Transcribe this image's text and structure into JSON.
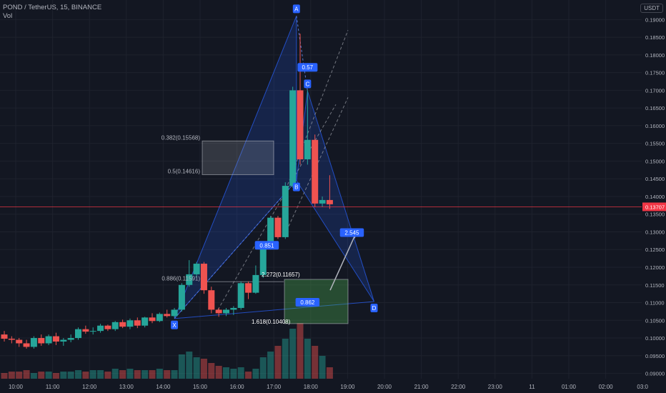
{
  "header": {
    "symbol_line": "POND / TetherUS, 15, BINANCE",
    "volume_label": "Vol",
    "currency": "USDT"
  },
  "colors": {
    "background": "#131722",
    "up": "#26a69a",
    "down": "#ef5350",
    "pattern_fill": "#2962ff",
    "price_line": "#f23645",
    "grid": "#1e222d"
  },
  "chart_data": {
    "type": "candlestick",
    "y_axis": {
      "ticks": [
        "0.19000",
        "0.18500",
        "0.18000",
        "0.17500",
        "0.17000",
        "0.16500",
        "0.16000",
        "0.15500",
        "0.15000",
        "0.14500",
        "0.14000",
        "0.13500",
        "0.13000",
        "0.12500",
        "0.12000",
        "0.11500",
        "0.11000",
        "0.10500",
        "0.10000",
        "0.09500",
        "0.09000"
      ],
      "range": [
        0.0885,
        0.1935
      ]
    },
    "x_axis": {
      "ticks": [
        "10:00",
        "11:00",
        "12:00",
        "13:00",
        "14:00",
        "15:00",
        "16:00",
        "17:00",
        "18:00",
        "19:00",
        "20:00",
        "21:00",
        "22:00",
        "23:00",
        "11",
        "01:00",
        "02:00",
        "03:0"
      ]
    },
    "last_price": "0.13707",
    "candles": [
      {
        "o": 0.101,
        "h": 0.102,
        "l": 0.099,
        "c": 0.0998,
        "v": 0.4
      },
      {
        "o": 0.0998,
        "h": 0.1005,
        "l": 0.0985,
        "c": 0.0995,
        "v": 0.5
      },
      {
        "o": 0.0995,
        "h": 0.1,
        "l": 0.0975,
        "c": 0.0985,
        "v": 0.5
      },
      {
        "o": 0.0985,
        "h": 0.0995,
        "l": 0.097,
        "c": 0.0975,
        "v": 0.6
      },
      {
        "o": 0.0975,
        "h": 0.1005,
        "l": 0.097,
        "c": 0.1,
        "v": 0.4
      },
      {
        "o": 0.1,
        "h": 0.101,
        "l": 0.0978,
        "c": 0.0985,
        "v": 0.5
      },
      {
        "o": 0.0985,
        "h": 0.101,
        "l": 0.098,
        "c": 0.1005,
        "v": 0.5
      },
      {
        "o": 0.1005,
        "h": 0.1015,
        "l": 0.098,
        "c": 0.099,
        "v": 0.4
      },
      {
        "o": 0.099,
        "h": 0.1,
        "l": 0.0978,
        "c": 0.0995,
        "v": 0.5
      },
      {
        "o": 0.0995,
        "h": 0.101,
        "l": 0.0988,
        "c": 0.1,
        "v": 0.5
      },
      {
        "o": 0.1,
        "h": 0.103,
        "l": 0.0995,
        "c": 0.1025,
        "v": 0.6
      },
      {
        "o": 0.1025,
        "h": 0.1035,
        "l": 0.1012,
        "c": 0.1018,
        "v": 0.5
      },
      {
        "o": 0.1018,
        "h": 0.103,
        "l": 0.101,
        "c": 0.102,
        "v": 0.6
      },
      {
        "o": 0.102,
        "h": 0.104,
        "l": 0.1015,
        "c": 0.1035,
        "v": 0.6
      },
      {
        "o": 0.1035,
        "h": 0.1038,
        "l": 0.102,
        "c": 0.1025,
        "v": 0.5
      },
      {
        "o": 0.1025,
        "h": 0.1048,
        "l": 0.102,
        "c": 0.1045,
        "v": 0.7
      },
      {
        "o": 0.1045,
        "h": 0.1052,
        "l": 0.1028,
        "c": 0.1032,
        "v": 0.6
      },
      {
        "o": 0.1032,
        "h": 0.1055,
        "l": 0.1025,
        "c": 0.105,
        "v": 0.7
      },
      {
        "o": 0.105,
        "h": 0.1058,
        "l": 0.1028,
        "c": 0.1035,
        "v": 0.6
      },
      {
        "o": 0.1035,
        "h": 0.106,
        "l": 0.103,
        "c": 0.1058,
        "v": 0.6
      },
      {
        "o": 0.1058,
        "h": 0.107,
        "l": 0.1042,
        "c": 0.1048,
        "v": 0.6
      },
      {
        "o": 0.1048,
        "h": 0.1072,
        "l": 0.1045,
        "c": 0.1068,
        "v": 0.7
      },
      {
        "o": 0.1068,
        "h": 0.108,
        "l": 0.1058,
        "c": 0.1062,
        "v": 0.6
      },
      {
        "o": 0.1062,
        "h": 0.1085,
        "l": 0.1058,
        "c": 0.108,
        "v": 0.6
      },
      {
        "o": 0.108,
        "h": 0.1155,
        "l": 0.1075,
        "c": 0.115,
        "v": 1.7
      },
      {
        "o": 0.115,
        "h": 0.122,
        "l": 0.1145,
        "c": 0.118,
        "v": 1.9
      },
      {
        "o": 0.118,
        "h": 0.1215,
        "l": 0.117,
        "c": 0.121,
        "v": 1.5
      },
      {
        "o": 0.121,
        "h": 0.1215,
        "l": 0.1125,
        "c": 0.1135,
        "v": 1.4
      },
      {
        "o": 0.1135,
        "h": 0.1145,
        "l": 0.107,
        "c": 0.108,
        "v": 1.1
      },
      {
        "o": 0.108,
        "h": 0.1085,
        "l": 0.106,
        "c": 0.107,
        "v": 0.9
      },
      {
        "o": 0.107,
        "h": 0.1085,
        "l": 0.1062,
        "c": 0.108,
        "v": 0.8
      },
      {
        "o": 0.108,
        "h": 0.109,
        "l": 0.1065,
        "c": 0.1085,
        "v": 0.7
      },
      {
        "o": 0.1085,
        "h": 0.116,
        "l": 0.108,
        "c": 0.1155,
        "v": 0.8
      },
      {
        "o": 0.1155,
        "h": 0.116,
        "l": 0.111,
        "c": 0.1128,
        "v": 0.5
      },
      {
        "o": 0.1128,
        "h": 0.1205,
        "l": 0.1125,
        "c": 0.1178,
        "v": 0.7
      },
      {
        "o": 0.1178,
        "h": 0.126,
        "l": 0.117,
        "c": 0.1255,
        "v": 1.5
      },
      {
        "o": 0.1255,
        "h": 0.1345,
        "l": 0.125,
        "c": 0.134,
        "v": 1.9
      },
      {
        "o": 0.134,
        "h": 0.1345,
        "l": 0.128,
        "c": 0.1285,
        "v": 2.3
      },
      {
        "o": 0.1285,
        "h": 0.144,
        "l": 0.128,
        "c": 0.143,
        "v": 2.8
      },
      {
        "o": 0.143,
        "h": 0.171,
        "l": 0.1425,
        "c": 0.17,
        "v": 3.5
      },
      {
        "o": 0.17,
        "h": 0.186,
        "l": 0.149,
        "c": 0.1505,
        "v": 3.9
      },
      {
        "o": 0.1505,
        "h": 0.17,
        "l": 0.149,
        "c": 0.156,
        "v": 2.8
      },
      {
        "o": 0.156,
        "h": 0.1575,
        "l": 0.137,
        "c": 0.138,
        "v": 2.3
      },
      {
        "o": 0.138,
        "h": 0.14,
        "l": 0.137,
        "c": 0.139,
        "v": 1.6
      },
      {
        "o": 0.139,
        "h": 0.146,
        "l": 0.1365,
        "c": 0.1378,
        "v": 0.8
      }
    ],
    "annotations": {
      "points": [
        {
          "label": "X",
          "price": 0.1055,
          "idx": 23
        },
        {
          "label": "A",
          "price": 0.191,
          "idx": 39.5
        },
        {
          "label": "B",
          "price": 0.1445,
          "idx": 39.5
        },
        {
          "label": "C",
          "price": 0.1698,
          "idx": 41
        },
        {
          "label": "D",
          "price": 0.1103,
          "idx": 50
        }
      ],
      "ratios": [
        {
          "text": "0.57",
          "price": 0.1765,
          "idx": 41
        },
        {
          "text": "2.545",
          "price": 0.1298,
          "idx": 47
        },
        {
          "text": "0.851",
          "price": 0.1262,
          "idx": 35.5
        },
        {
          "text": "0.862",
          "price": 0.1101,
          "idx": 41
        }
      ],
      "levels": [
        {
          "text": "0.382(0.15568)",
          "price": 0.15568
        },
        {
          "text": "0.5(0.14616)",
          "price": 0.14616
        },
        {
          "text": "0.886(0.11591)",
          "price": 0.11591
        },
        {
          "text": "2.272(0.11657)",
          "price": 0.11657
        },
        {
          "text": "1.618(0.10408)",
          "price": 0.10408
        }
      ]
    }
  }
}
